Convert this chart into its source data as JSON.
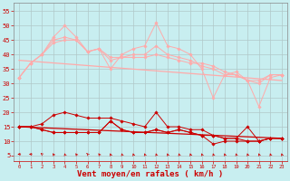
{
  "bg_color": "#c8eef0",
  "grid_color": "#b0c8c8",
  "xlabel": "Vent moyen/en rafales ( km/h )",
  "xlabel_color": "#cc0000",
  "xlabel_fontsize": 6.5,
  "xtick_labels": [
    "0",
    "1",
    "2",
    "3",
    "4",
    "5",
    "6",
    "7",
    "8",
    "9",
    "10",
    "11",
    "12",
    "13",
    "14",
    "15",
    "16",
    "17",
    "18",
    "19",
    "20",
    "21",
    "22",
    "23"
  ],
  "yticks": [
    5,
    10,
    15,
    20,
    25,
    30,
    35,
    40,
    45,
    50,
    55
  ],
  "ylim": [
    3,
    58
  ],
  "xlim": [
    -0.5,
    23.5
  ],
  "light_color": "#ffaaaa",
  "dark_color": "#cc0000",
  "light_series": [
    [
      32,
      37,
      40,
      46,
      50,
      46,
      41,
      42,
      35,
      40,
      42,
      43,
      51,
      43,
      42,
      40,
      35,
      25,
      33,
      34,
      31,
      22,
      32,
      33
    ],
    [
      32,
      37,
      40,
      45,
      46,
      45,
      41,
      42,
      38,
      39,
      40,
      40,
      43,
      40,
      39,
      38,
      36,
      35,
      33,
      33,
      31,
      30,
      33,
      33
    ],
    [
      32,
      37,
      40,
      44,
      45,
      45,
      41,
      42,
      39,
      39,
      39,
      39,
      40,
      39,
      38,
      37,
      37,
      36,
      34,
      33,
      31,
      31,
      33,
      33
    ]
  ],
  "dark_series": [
    [
      15,
      15,
      16,
      19,
      20,
      19,
      18,
      18,
      18,
      17,
      16,
      15,
      20,
      15,
      15,
      14,
      14,
      12,
      11,
      11,
      15,
      10,
      11,
      11
    ],
    [
      15,
      15,
      14,
      13,
      13,
      13,
      13,
      13,
      17,
      14,
      13,
      13,
      14,
      13,
      14,
      13,
      12,
      9,
      10,
      10,
      10,
      10,
      11,
      11
    ],
    [
      15,
      15,
      14,
      13,
      13,
      13,
      13,
      13,
      17,
      14,
      13,
      13,
      14,
      13,
      14,
      13,
      12,
      12,
      11,
      11,
      10,
      10,
      11,
      11
    ]
  ],
  "trend_light": [
    38,
    31
  ],
  "trend_dark": [
    15,
    11
  ],
  "arrow_angles": [
    270,
    260,
    200,
    190,
    185,
    190,
    195,
    190,
    185,
    185,
    185,
    185,
    185,
    185,
    185,
    185,
    185,
    185,
    185,
    185,
    185,
    185,
    185,
    185
  ]
}
